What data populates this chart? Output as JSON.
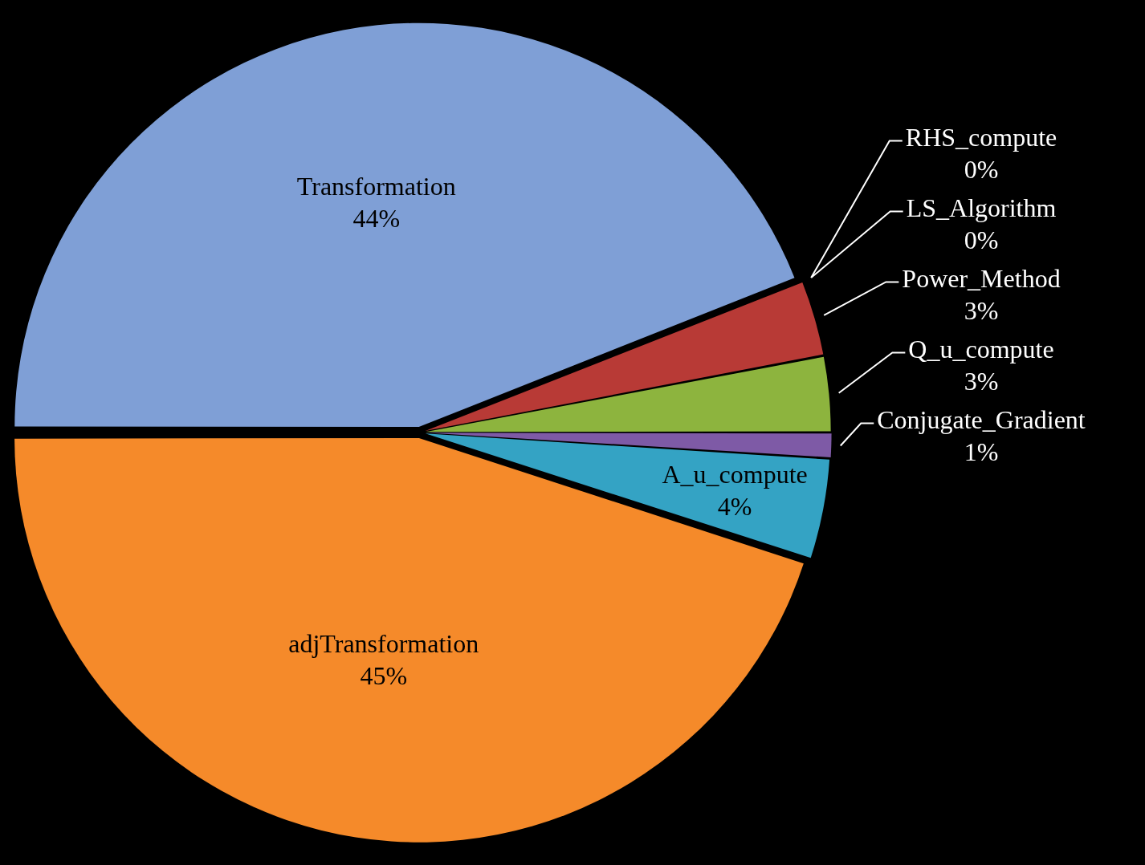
{
  "chart_data": {
    "type": "pie",
    "categories": [
      "Transformation",
      "RHS_compute",
      "LS_Algorithm",
      "Power_Method",
      "Q_u_compute",
      "Conjugate_Gradient",
      "A_u_compute",
      "adjTransformation"
    ],
    "values": [
      44,
      0,
      0,
      3,
      3,
      1,
      4,
      45
    ],
    "value_labels": [
      "44%",
      "0%",
      "0%",
      "3%",
      "3%",
      "1%",
      "4%",
      "45%"
    ],
    "colors": [
      "#7f9fd6",
      "#d9d9d9",
      "#4f81bd",
      "#b83a36",
      "#8db43e",
      "#7e5aa6",
      "#34a3c4",
      "#f58a2a"
    ],
    "legend": false
  }
}
